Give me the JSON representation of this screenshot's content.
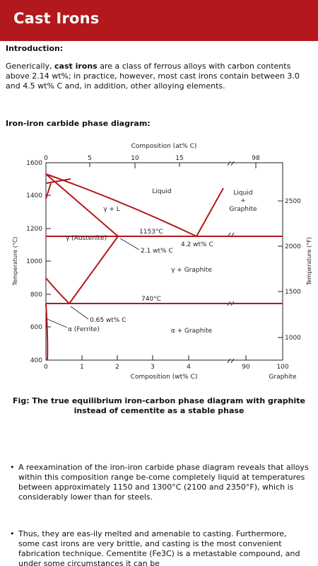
{
  "appbar": {
    "title": "Cast Irons"
  },
  "intro": {
    "heading": "Introduction:",
    "text_before": "Generically, ",
    "text_bold": "cast irons",
    "text_after": " are a class of ferrous alloys with carbon contents above 2.14 wt%; in practice, however, most cast irons contain between 3.0 and 4.5 wt% C and, in addition, other alloying elements."
  },
  "diagram_heading": "Iron-iron carbide phase diagram:",
  "chart_data": {
    "type": "diagram",
    "top_axis_label": "Composition (at% C)",
    "top_ticks": [
      "0",
      "5",
      "10",
      "15",
      "98"
    ],
    "bottom_axis_label": "Composition (wt% C)",
    "bottom_ticks": [
      "0",
      "1",
      "2",
      "3",
      "4",
      "90",
      "100"
    ],
    "bottom_end_label": "Graphite",
    "left_axis_label": "Temperature (°C)",
    "left_ticks": [
      "1600",
      "1400",
      "1200",
      "1000",
      "800",
      "600",
      "400"
    ],
    "right_axis_label": "Temperature (°F)",
    "right_ticks": [
      "2500",
      "2000",
      "1500",
      "1000"
    ],
    "labels": {
      "liquid": "Liquid",
      "liquid_graphite_1": "Liquid",
      "liquid_graphite_2": "+",
      "liquid_graphite_3": "Graphite",
      "gamma_l": "γ + L",
      "austenite": "γ (Austenite)",
      "eutectic_temp": "1153°C",
      "eutectic_comp": "4.2 wt% C",
      "gamma_solubility": "2.1 wt% C",
      "gamma_graphite": "γ + Graphite",
      "eutectoid_temp": "740°C",
      "eutectoid_comp": "0.65 wt% C",
      "ferrite": "α (Ferrite)",
      "alpha_graphite": "α + Graphite"
    }
  },
  "figure_caption": "Fig: The true equilibrium iron-carbon phase diagram with graphite instead of cementite as a stable phase",
  "bullets": [
    "A reexamination of the iron-iron carbide phase diagram reveals that alloys within this composition range be-come completely liquid at temperatures between approximately 1150 and 1300°C (2100 and 2350°F), which is considerably lower than for steels.",
    "Thus, they are eas-ily melted and amenable to casting. Furthermore, some cast irons are very brittle, and casting is the most convenient fabrication technique. Cementite (Fe3C) is a metastable compound, and under some circumstances it can be"
  ]
}
